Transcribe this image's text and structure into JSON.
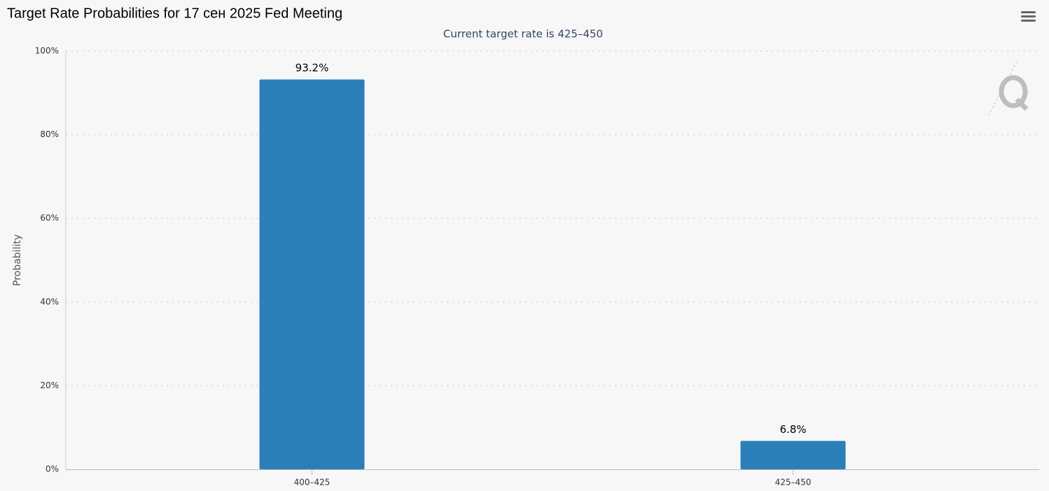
{
  "chart_data": {
    "type": "bar",
    "title": "Target Rate Probabilities for 17 сен 2025 Fed Meeting",
    "subtitle": "Current target rate is 425–450",
    "y_label": "Probability",
    "categories": [
      "400–425",
      "425–450"
    ],
    "values": [
      93.2,
      6.8
    ],
    "value_labels": [
      "93.2%",
      "6.8%"
    ],
    "color": "#2a7fb8",
    "ylim": [
      0,
      100
    ],
    "yticks": [
      {
        "value": 0,
        "label": "0%"
      },
      {
        "value": 20,
        "label": "20%"
      },
      {
        "value": 40,
        "label": "40%"
      },
      {
        "value": 60,
        "label": "60%"
      },
      {
        "value": 80,
        "label": "80%"
      },
      {
        "value": 100,
        "label": "100%"
      }
    ],
    "grid": true
  }
}
